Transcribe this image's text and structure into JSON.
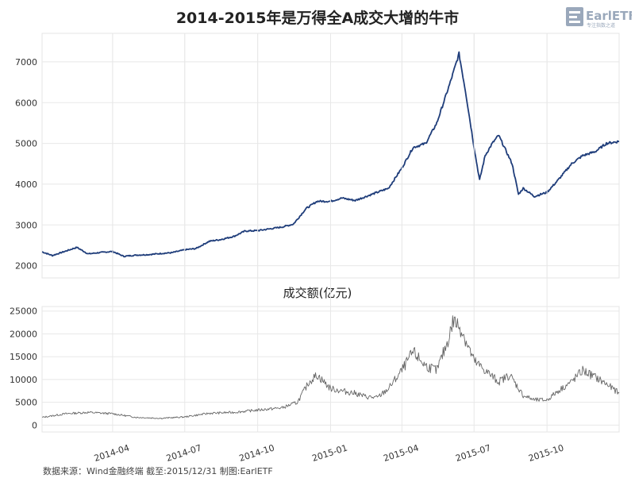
{
  "title": "2014-2015年是万得全A成交大增的牛市",
  "logo": {
    "text": "EarlETF",
    "subtext": "专注指数之道"
  },
  "source": "数据来源：Wind金融终端 截至:2015/12/31 制图:EarlETF",
  "chart_data": [
    {
      "type": "line",
      "title": "",
      "xlim": [
        "2014-01-02",
        "2015-12-31"
      ],
      "ylim": [
        1700,
        7700
      ],
      "yticks": [
        2000,
        3000,
        4000,
        5000,
        6000,
        7000
      ],
      "grid": true,
      "color": "#1f3d7a",
      "x": [
        "2014-01-02",
        "2014-01-15",
        "2014-02-01",
        "2014-02-15",
        "2014-03-01",
        "2014-03-15",
        "2014-04-01",
        "2014-04-15",
        "2014-05-01",
        "2014-05-15",
        "2014-06-01",
        "2014-06-15",
        "2014-07-01",
        "2014-07-15",
        "2014-08-01",
        "2014-08-15",
        "2014-09-01",
        "2014-09-15",
        "2014-10-01",
        "2014-10-15",
        "2014-11-01",
        "2014-11-15",
        "2014-12-01",
        "2014-12-15",
        "2015-01-01",
        "2015-01-15",
        "2015-02-01",
        "2015-02-15",
        "2015-03-01",
        "2015-03-15",
        "2015-04-01",
        "2015-04-15",
        "2015-05-01",
        "2015-05-15",
        "2015-06-01",
        "2015-06-12",
        "2015-06-20",
        "2015-07-01",
        "2015-07-08",
        "2015-07-15",
        "2015-07-24",
        "2015-08-01",
        "2015-08-18",
        "2015-08-26",
        "2015-09-01",
        "2015-09-15",
        "2015-10-01",
        "2015-10-15",
        "2015-11-01",
        "2015-11-15",
        "2015-12-01",
        "2015-12-15",
        "2015-12-31"
      ],
      "y": [
        2340,
        2250,
        2360,
        2450,
        2290,
        2320,
        2350,
        2230,
        2260,
        2270,
        2300,
        2320,
        2390,
        2420,
        2600,
        2640,
        2720,
        2850,
        2860,
        2900,
        2950,
        3020,
        3400,
        3580,
        3580,
        3660,
        3600,
        3700,
        3800,
        3900,
        4400,
        4900,
        5000,
        5500,
        6500,
        7200,
        6300,
        4900,
        4100,
        4700,
        5000,
        5200,
        4500,
        3750,
        3900,
        3700,
        3800,
        4100,
        4500,
        4700,
        4800,
        5000,
        5050
      ]
    },
    {
      "type": "area",
      "title": "成交额(亿元)",
      "xlim": [
        "2014-01-02",
        "2015-12-31"
      ],
      "ylim": [
        -1500,
        26000
      ],
      "yticks": [
        0,
        5000,
        10000,
        15000,
        20000,
        25000
      ],
      "xticks": [
        "2014-04",
        "2014-07",
        "2014-10",
        "2015-01",
        "2015-04",
        "2015-07",
        "2015-10"
      ],
      "grid": true,
      "color": "#666666",
      "x": [
        "2014-01-02",
        "2014-02-01",
        "2014-03-01",
        "2014-04-01",
        "2014-05-01",
        "2014-06-01",
        "2014-07-01",
        "2014-08-01",
        "2014-09-01",
        "2014-10-01",
        "2014-11-01",
        "2014-11-20",
        "2014-12-05",
        "2014-12-15",
        "2015-01-01",
        "2015-01-15",
        "2015-02-01",
        "2015-02-15",
        "2015-03-01",
        "2015-03-15",
        "2015-04-01",
        "2015-04-15",
        "2015-05-01",
        "2015-05-15",
        "2015-05-28",
        "2015-06-05",
        "2015-06-15",
        "2015-07-01",
        "2015-07-15",
        "2015-08-01",
        "2015-08-15",
        "2015-09-01",
        "2015-09-15",
        "2015-10-01",
        "2015-10-15",
        "2015-11-01",
        "2015-11-15",
        "2015-12-01",
        "2015-12-15",
        "2015-12-31"
      ],
      "y": [
        1700,
        2500,
        2800,
        2500,
        1700,
        1500,
        1800,
        2600,
        2800,
        3300,
        3800,
        5000,
        9500,
        11000,
        8000,
        7500,
        7000,
        6200,
        6000,
        8000,
        12000,
        16000,
        13000,
        12000,
        18000,
        23000,
        21000,
        14000,
        12000,
        9500,
        11000,
        6500,
        5500,
        5500,
        7500,
        9500,
        12000,
        10500,
        9000,
        7000
      ]
    }
  ]
}
